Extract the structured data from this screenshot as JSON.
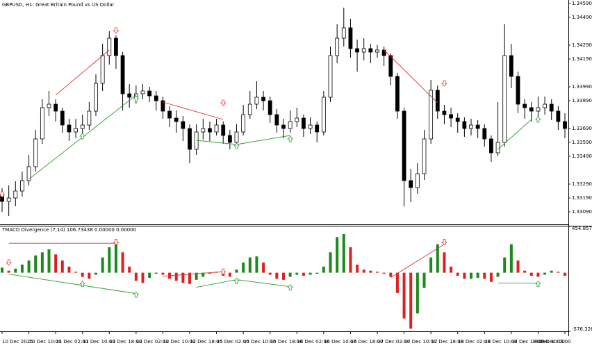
{
  "chart_data": [
    {
      "type": "candlestick",
      "title": "GBPUSD, H1:  Great Britain Pound vs US Dollar",
      "categories": [
        "10 Dec 2025",
        null,
        null,
        null,
        "10 Dec 10:00",
        null,
        null,
        null,
        "11 Dec 02:00",
        null,
        null,
        null,
        "11 Dec 10:00",
        null,
        null,
        null,
        "11 Dec 18:00",
        null,
        null,
        null,
        "12 Dec 02:00",
        null,
        null,
        null,
        "12 Dec 10:00",
        null,
        null,
        null,
        "12 Dec 18:00",
        null,
        null,
        null,
        "15 Dec 02:00",
        null,
        null,
        null,
        "15 Dec 10:00",
        null,
        null,
        null,
        "15 Dec 18:00",
        null,
        null,
        null,
        "16 Dec 02:00",
        null,
        null,
        null,
        "16 Dec 10:00",
        null,
        null,
        null,
        "16 Dec 18:00",
        null,
        null,
        null,
        "17 Dec 02:00",
        null,
        null,
        null,
        "17 Dec 10:00",
        null,
        null,
        null,
        "17 Dec 18:00",
        null,
        null,
        null,
        "18 Dec 02:00",
        null,
        null,
        null,
        "18 Dec 10:00",
        null,
        null,
        null,
        "18 Dec 18:00",
        null,
        null,
        null,
        "19 Dec 02:00",
        null,
        null,
        null,
        "19 Dec 10:00"
      ],
      "open": [
        1.33215,
        1.33165,
        1.3319,
        1.3324,
        1.33315,
        1.33415,
        1.33615,
        1.3384,
        1.33865,
        1.33815,
        1.33715,
        1.33665,
        1.3369,
        1.33715,
        1.33815,
        1.34015,
        1.34215,
        1.3434,
        1.34215,
        1.3394,
        1.33915,
        1.3394,
        1.3396,
        1.33925,
        1.3389,
        1.33815,
        1.33765,
        1.3374,
        1.3369,
        1.3354,
        1.33665,
        1.3369,
        1.33665,
        1.33715,
        1.3364,
        1.3359,
        1.33665,
        1.3379,
        1.33865,
        1.33915,
        1.3389,
        1.3379,
        1.33715,
        1.3369,
        1.3374,
        1.33765,
        1.3369,
        1.33715,
        1.33665,
        1.33915,
        1.34215,
        1.3434,
        1.34415,
        1.34265,
        1.3424,
        1.34265,
        1.3424,
        1.34255,
        1.34215,
        1.34065,
        1.33815,
        1.33315,
        1.33265,
        1.33365,
        1.33615,
        1.33965,
        1.33815,
        1.3379,
        1.33765,
        1.3374,
        1.3369,
        1.33715,
        1.3369,
        1.33615,
        1.33515,
        1.3359,
        1.34215,
        1.34065,
        1.33865,
        1.3384,
        1.33815,
        1.3384,
        1.33865,
        1.33815,
        1.3374
      ],
      "high": [
        1.3326,
        1.3328,
        1.3331,
        1.3338,
        1.335,
        1.3368,
        1.339,
        1.3396,
        1.339,
        1.3384,
        1.3376,
        1.3376,
        1.3379,
        1.3388,
        1.3408,
        1.343,
        1.3439,
        1.3436,
        1.3424,
        1.3401,
        1.34,
        1.3401,
        1.3399,
        1.3396,
        1.3392,
        1.3385,
        1.3382,
        1.3378,
        1.3372,
        1.3372,
        1.3376,
        1.3374,
        1.3376,
        1.3374,
        1.3368,
        1.3372,
        1.3386,
        1.3396,
        1.3403,
        1.3396,
        1.3392,
        1.3383,
        1.3376,
        1.3382,
        1.3384,
        1.3379,
        1.3377,
        1.3374,
        1.3396,
        1.3428,
        1.3444,
        1.3456,
        1.3448,
        1.3433,
        1.3434,
        1.343,
        1.3429,
        1.3428,
        1.3423,
        1.3409,
        1.3384,
        1.334,
        1.3344,
        1.3368,
        1.3404,
        1.34,
        1.3386,
        1.3384,
        1.338,
        1.3377,
        1.3376,
        1.3375,
        1.3372,
        1.3364,
        1.3388,
        1.3444,
        1.343,
        1.341,
        1.339,
        1.3388,
        1.3392,
        1.3392,
        1.339,
        1.3385,
        1.338
      ],
      "low": [
        1.3309,
        1.3306,
        1.3313,
        1.332,
        1.3328,
        1.3338,
        1.3358,
        1.3378,
        1.3374,
        1.3366,
        1.336,
        1.3362,
        1.3364,
        1.3368,
        1.3378,
        1.3396,
        1.3415,
        1.3412,
        1.3382,
        1.3384,
        1.3387,
        1.339,
        1.3388,
        1.3382,
        1.3376,
        1.337,
        1.3366,
        1.336,
        1.3344,
        1.335,
        1.3361,
        1.336,
        1.3364,
        1.3358,
        1.3354,
        1.3356,
        1.3364,
        1.3376,
        1.3383,
        1.3382,
        1.3373,
        1.3366,
        1.3362,
        1.3366,
        1.337,
        1.3363,
        1.3365,
        1.3359,
        1.3364,
        1.3388,
        1.3416,
        1.3428,
        1.342,
        1.341,
        1.3418,
        1.3416,
        1.342,
        1.3414,
        1.34,
        1.3376,
        1.3313,
        1.3316,
        1.3322,
        1.3332,
        1.3358,
        1.3376,
        1.3372,
        1.337,
        1.3366,
        1.3363,
        1.3364,
        1.3362,
        1.3356,
        1.3345,
        1.3349,
        1.3356,
        1.3398,
        1.338,
        1.3376,
        1.3374,
        1.3377,
        1.3379,
        1.3375,
        1.3368,
        1.3362
      ],
      "close": [
        1.33165,
        1.3319,
        1.3324,
        1.33315,
        1.33415,
        1.33615,
        1.3384,
        1.33865,
        1.33815,
        1.33715,
        1.33665,
        1.3369,
        1.33715,
        1.33815,
        1.34015,
        1.34215,
        1.3434,
        1.34215,
        1.3394,
        1.33915,
        1.3394,
        1.3396,
        1.33925,
        1.3389,
        1.33815,
        1.33765,
        1.3374,
        1.3369,
        1.3354,
        1.33665,
        1.3369,
        1.33665,
        1.33715,
        1.3364,
        1.3359,
        1.33665,
        1.3379,
        1.33865,
        1.33915,
        1.3389,
        1.3379,
        1.33715,
        1.3369,
        1.3374,
        1.33765,
        1.3369,
        1.33715,
        1.33665,
        1.33915,
        1.34215,
        1.3434,
        1.34415,
        1.34265,
        1.3424,
        1.34265,
        1.3424,
        1.34255,
        1.34215,
        1.34065,
        1.33815,
        1.33315,
        1.33265,
        1.33365,
        1.33615,
        1.33965,
        1.33815,
        1.3379,
        1.33765,
        1.3374,
        1.3369,
        1.33715,
        1.3369,
        1.33615,
        1.33515,
        1.3359,
        1.34215,
        1.34065,
        1.33865,
        1.3384,
        1.33815,
        1.3384,
        1.33865,
        1.33815,
        1.3374,
        1.3369
      ],
      "bull_color": "#ffffff",
      "bear_color": "#000000",
      "ylim": [
        1.33,
        1.34615
      ],
      "yticks": [
        {
          "value": 1.3459,
          "label": "1.34590"
        },
        {
          "value": 1.3449,
          "label": "1.34490"
        },
        {
          "value": 1.3429,
          "label": "1.34290"
        },
        {
          "value": 1.3419,
          "label": "1.34190"
        },
        {
          "value": 1.3399,
          "label": "1.33990"
        },
        {
          "value": 1.3389,
          "label": "1.33890"
        },
        {
          "value": 1.3369,
          "label": "1.33690"
        },
        {
          "value": 1.3359,
          "label": "1.33590"
        },
        {
          "value": 1.3349,
          "label": "1.33490"
        },
        {
          "value": 1.3329,
          "label": "1.33290"
        },
        {
          "value": 1.3319,
          "label": "1.33190"
        },
        {
          "value": 1.3309,
          "label": "1.33090"
        }
      ],
      "lines": [
        {
          "color": "#e03030",
          "x": [
            8,
            16
          ],
          "y": [
            1.3393,
            1.34255
          ]
        },
        {
          "color": "#e03030",
          "x": [
            24,
            33
          ],
          "y": [
            1.3388,
            1.33755
          ]
        },
        {
          "color": "#e03030",
          "x": [
            57,
            65
          ],
          "y": [
            1.34255,
            1.33875
          ]
        },
        {
          "color": "#2e9e2e",
          "x": [
            4,
            20
          ],
          "y": [
            1.33325,
            1.3393
          ]
        },
        {
          "color": "#2e9e2e",
          "x": [
            29,
            35,
            43
          ],
          "y": [
            1.33605,
            1.33575,
            1.3364
          ]
        },
        {
          "color": "#2e9e2e",
          "x": [
            74,
            79
          ],
          "y": [
            1.3354,
            1.33755
          ]
        }
      ],
      "arrows": [
        {
          "dir": "down",
          "color": "#e03030",
          "x": 0,
          "y": 1.33215
        },
        {
          "dir": "down",
          "color": "#e03030",
          "x": 17,
          "y": 1.34395
        },
        {
          "dir": "down",
          "color": "#e03030",
          "x": 33,
          "y": 1.33875
        },
        {
          "dir": "down",
          "color": "#e03030",
          "x": 66,
          "y": 1.34015
        },
        {
          "dir": "up",
          "color": "#2e9e2e",
          "x": 12,
          "y": 1.33635
        },
        {
          "dir": "up",
          "color": "#2e9e2e",
          "x": 20,
          "y": 1.33905
        },
        {
          "dir": "up",
          "color": "#2e9e2e",
          "x": 35,
          "y": 1.33565
        },
        {
          "dir": "up",
          "color": "#2e9e2e",
          "x": 43,
          "y": 1.33615
        },
        {
          "dir": "up",
          "color": "#2e9e2e",
          "x": 80,
          "y": 1.33755
        }
      ]
    },
    {
      "type": "bar",
      "title": "TMACD Divergence (7,14) 106.73438 0.00000 0.00000",
      "values": [
        50,
        20,
        40,
        80,
        120,
        170,
        200,
        230,
        180,
        120,
        60,
        10,
        -40,
        -60,
        -20,
        150,
        250,
        300,
        200,
        60,
        -80,
        -100,
        -50,
        -10,
        -20,
        -60,
        -80,
        -100,
        -110,
        -70,
        -40,
        -10,
        10,
        -30,
        -40,
        30,
        100,
        150,
        160,
        100,
        -20,
        -60,
        -70,
        -40,
        -20,
        -30,
        -20,
        -10,
        60,
        200,
        350,
        380,
        250,
        80,
        30,
        20,
        10,
        -10,
        -40,
        -200,
        -450,
        -550,
        -400,
        -150,
        150,
        280,
        200,
        60,
        -30,
        -60,
        -60,
        -50,
        -60,
        -90,
        -40,
        150,
        280,
        120,
        20,
        -30,
        -40,
        -20,
        20,
        10,
        -30
      ],
      "up_color": "#1a8a1a",
      "down_color": "#e02020",
      "ylim": [
        -576.32672,
        454.85797
      ],
      "yticks": [
        454.85797,
        -576.32672
      ],
      "lines": [
        {
          "color": "#e03030",
          "x": [
            1,
            17
          ],
          "y": [
            290,
            290
          ]
        },
        {
          "color": "#2e9e2e",
          "x": [
            1,
            20
          ],
          "y": [
            -14,
            -205
          ]
        },
        {
          "color": "#e03030",
          "x": [
            24,
            33
          ],
          "y": [
            -34,
            10
          ]
        },
        {
          "color": "#2e9e2e",
          "x": [
            29,
            35,
            43
          ],
          "y": [
            -143,
            -68,
            -137
          ]
        },
        {
          "color": "#e03030",
          "x": [
            58,
            66
          ],
          "y": [
            -48,
            280
          ]
        },
        {
          "color": "#2e9e2e",
          "x": [
            74,
            80
          ],
          "y": [
            -102,
            -102
          ]
        }
      ],
      "arrows": [
        {
          "dir": "down",
          "color": "#e03030",
          "x": 1,
          "y": 100
        },
        {
          "dir": "down",
          "color": "#e03030",
          "x": 17,
          "y": 300
        },
        {
          "dir": "down",
          "color": "#e03030",
          "x": 33,
          "y": 10
        },
        {
          "dir": "down",
          "color": "#e03030",
          "x": 66,
          "y": 300
        },
        {
          "dir": "up",
          "color": "#2e9e2e",
          "x": 12,
          "y": -110
        },
        {
          "dir": "up",
          "color": "#2e9e2e",
          "x": 20,
          "y": -215
        },
        {
          "dir": "up",
          "color": "#2e9e2e",
          "x": 35,
          "y": -80
        },
        {
          "dir": "up",
          "color": "#2e9e2e",
          "x": 43,
          "y": -145
        },
        {
          "dir": "up",
          "color": "#2e9e2e",
          "x": 80,
          "y": -110
        }
      ]
    }
  ]
}
